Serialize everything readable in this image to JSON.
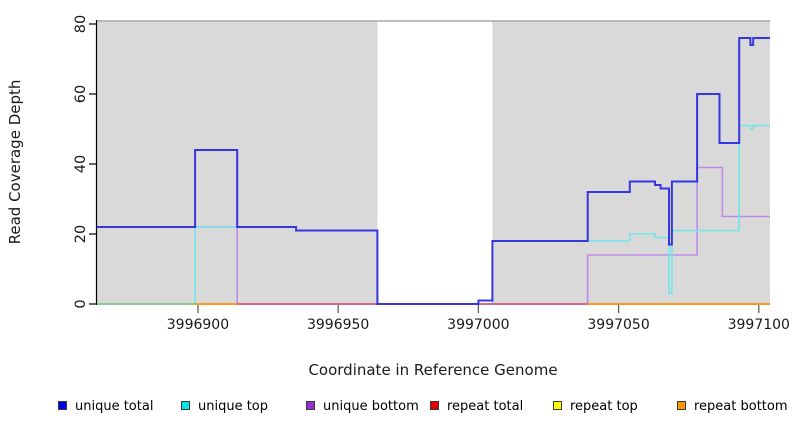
{
  "y_axis": {
    "title": "Read Coverage Depth",
    "tick_labels": [
      "0",
      "20",
      "40",
      "60",
      "80"
    ]
  },
  "x_axis": {
    "title": "Coordinate in Reference Genome",
    "tick_labels": [
      "3996900",
      "3996950",
      "3997000",
      "3997050",
      "3997100"
    ]
  },
  "legend": {
    "items": [
      {
        "label": "unique total",
        "swatch_color": "#0000e6"
      },
      {
        "label": "unique top",
        "swatch_color": "#00e6e6"
      },
      {
        "label": "unique bottom",
        "swatch_color": "#9a2fd0"
      },
      {
        "label": "repeat total",
        "swatch_color": "#e60000"
      },
      {
        "label": "repeat top",
        "swatch_color": "#ffff00"
      },
      {
        "label": "repeat bottom",
        "swatch_color": "#ff9900"
      }
    ]
  },
  "chart_data": {
    "type": "line",
    "title": "",
    "xlabel": "Coordinate in Reference Genome",
    "ylabel": "Read Coverage Depth",
    "xlim": [
      3996864,
      3997104
    ],
    "ylim": [
      0,
      80
    ],
    "x_ticks": [
      3996900,
      3996950,
      3997000,
      3997050,
      3997100
    ],
    "y_ticks": [
      0,
      20,
      40,
      60,
      80
    ],
    "grid": false,
    "legend_position": "bottom",
    "plot_background": "#d9d9d9",
    "uncovered_gap": {
      "x_start": 3996964,
      "x_end": 3997005,
      "color": "#ffffff"
    },
    "series": [
      {
        "name": "unique bottom",
        "color": "#bd8ce8",
        "width": 1.6,
        "runs": [
          [
            [
              3996864,
              22
            ],
            [
              3996914,
              0
            ],
            [
              3997039,
              14
            ],
            [
              3997078,
              39
            ],
            [
              3997087,
              25
            ],
            [
              3997104,
              25
            ]
          ]
        ]
      },
      {
        "name": "unique top",
        "color": "#72e6e8",
        "width": 1.6,
        "runs": [
          [
            [
              3996864,
              0
            ],
            [
              3996899,
              22
            ],
            [
              3996935,
              21
            ],
            [
              3996964,
              0
            ],
            [
              3997005,
              18
            ],
            [
              3997054,
              20
            ],
            [
              3997063,
              19
            ],
            [
              3997068,
              3
            ],
            [
              3997069,
              21
            ],
            [
              3997093,
              51
            ],
            [
              3997097,
              50
            ],
            [
              3997098,
              51
            ],
            [
              3997104,
              51
            ]
          ]
        ]
      },
      {
        "name": "repeat total",
        "color": "#d94f70",
        "width": 1.5,
        "runs": [
          [
            [
              3996914,
              0
            ],
            [
              3997039,
              0
            ]
          ]
        ]
      },
      {
        "name": "repeat top",
        "color": "#77c97c",
        "width": 1.5,
        "runs": [
          [
            [
              3996864,
              0
            ],
            [
              3996899,
              0
            ]
          ]
        ]
      },
      {
        "name": "repeat bottom",
        "color": "#ff9300",
        "width": 1.8,
        "runs": [
          [
            [
              3996899,
              0
            ],
            [
              3996914,
              0
            ]
          ],
          [
            [
              3997039,
              0
            ],
            [
              3997104,
              0
            ]
          ]
        ]
      },
      {
        "name": "unique total",
        "color": "#3636e0",
        "width": 2,
        "runs": [
          [
            [
              3996864,
              22
            ],
            [
              3996899,
              44
            ],
            [
              3996914,
              22
            ],
            [
              3996935,
              21
            ],
            [
              3996964,
              0
            ],
            [
              3997000,
              1
            ],
            [
              3997005,
              18
            ],
            [
              3997039,
              32
            ],
            [
              3997054,
              35
            ],
            [
              3997063,
              34
            ],
            [
              3997065,
              33
            ],
            [
              3997068,
              17
            ],
            [
              3997069,
              35
            ],
            [
              3997078,
              60
            ],
            [
              3997086,
              46
            ],
            [
              3997093,
              76
            ],
            [
              3997097,
              74
            ],
            [
              3997098,
              76
            ],
            [
              3997104,
              76
            ]
          ]
        ]
      }
    ]
  }
}
